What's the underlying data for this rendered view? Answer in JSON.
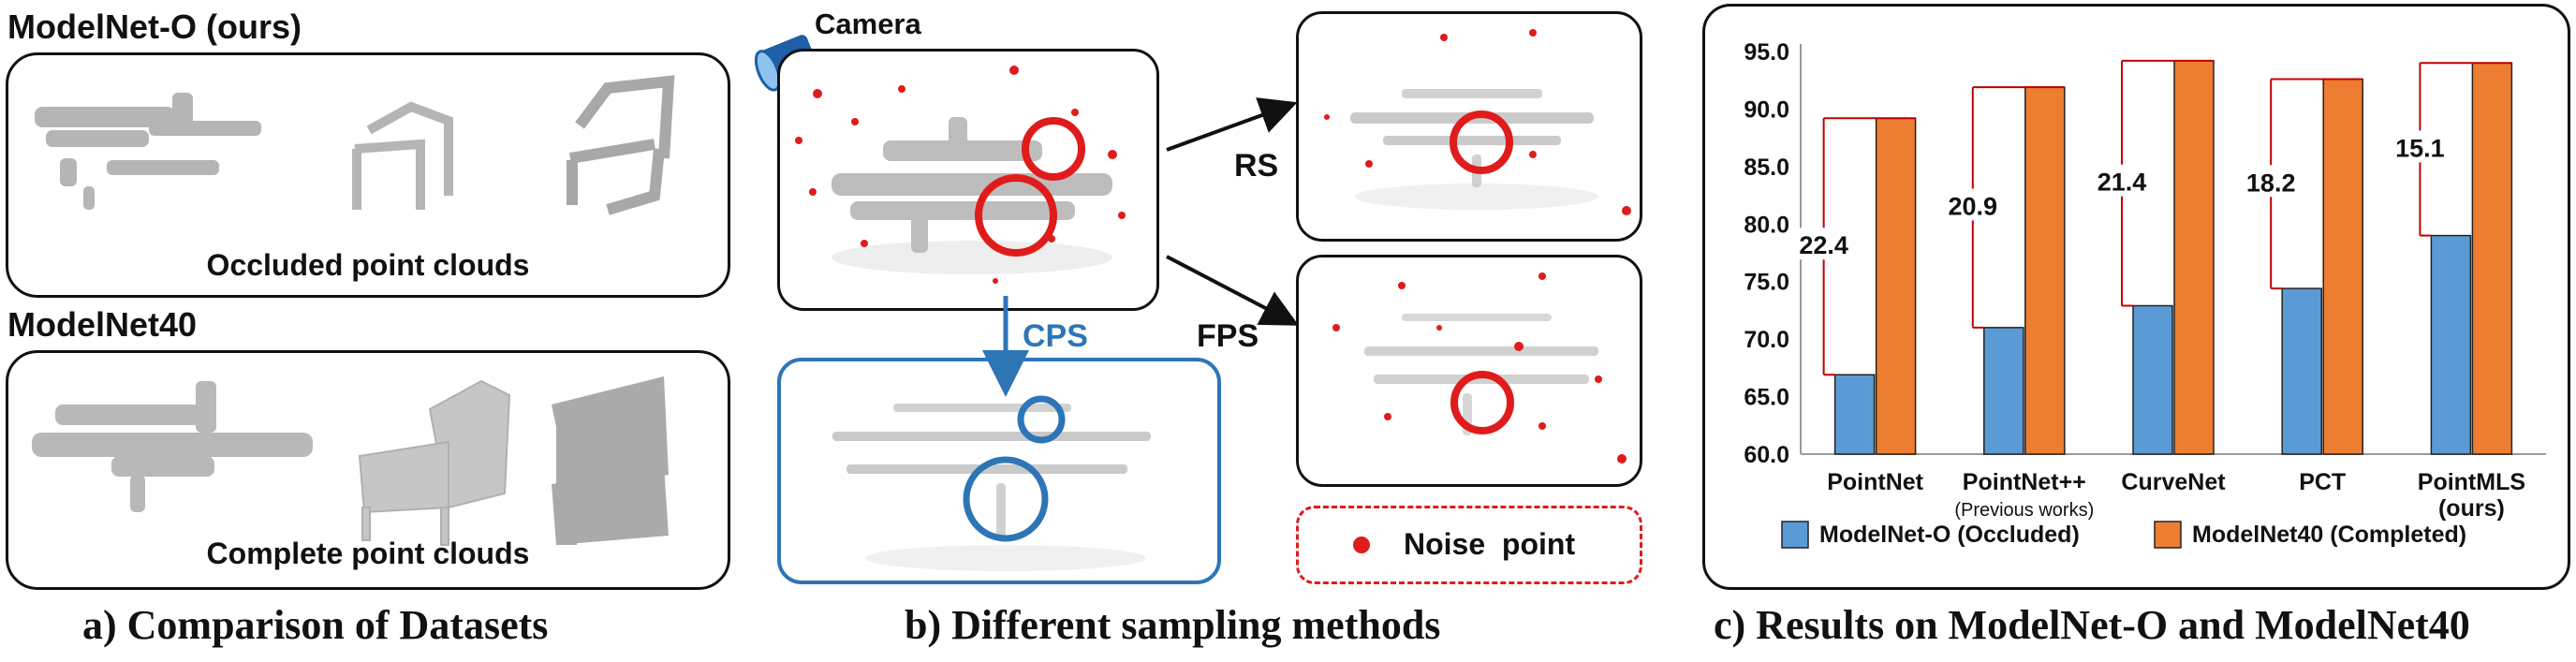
{
  "panel_a": {
    "title_occluded": "ModelNet-O (ours)",
    "label_occluded": "Occluded point clouds",
    "title_complete": "ModelNet40",
    "label_complete": "Complete point clouds",
    "caption": "a) Comparison of Datasets"
  },
  "panel_b": {
    "camera_label": "Camera",
    "rs_label": "RS",
    "fps_label": "FPS",
    "cps_label": "CPS",
    "noise_legend": "Noise  point",
    "caption": "b) Different sampling methods",
    "colors": {
      "noise": "#e01b1b",
      "cps": "#2e75b6",
      "points": "#bdbdbd"
    }
  },
  "chart_data": {
    "type": "bar",
    "title": "",
    "categories": [
      "PointNet",
      "PointNet++",
      "CurveNet",
      "PCT",
      "PointMLS"
    ],
    "category_sublabels": [
      "",
      "(Previous works)",
      "",
      "",
      "(ours)"
    ],
    "series": [
      {
        "name": "ModelNet-O (Occluded)",
        "color": "#5b9bd5",
        "values": [
          66.9,
          71.0,
          72.9,
          74.4,
          79.0
        ]
      },
      {
        "name": "ModelNet40 (Completed)",
        "color": "#ed7d31",
        "values": [
          89.2,
          91.9,
          94.2,
          92.6,
          94.0
        ]
      }
    ],
    "gap_labels": [
      "22.4",
      "20.9",
      "21.4",
      "18.2",
      "15.1"
    ],
    "ylim": [
      60.0,
      95.0
    ],
    "yticks": [
      "60.0",
      "65.0",
      "70.0",
      "75.0",
      "80.0",
      "85.0",
      "90.0",
      "95.0"
    ],
    "grid": false,
    "legend_position": "bottom",
    "caption": "c) Results on ModelNet-O and ModelNet40"
  }
}
